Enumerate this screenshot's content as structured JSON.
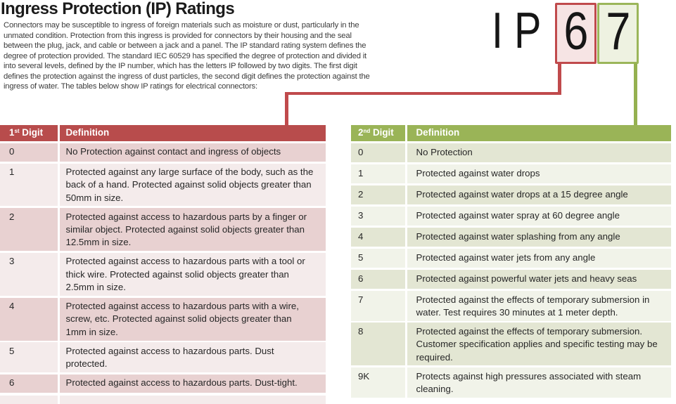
{
  "title": "Ingress Protection (IP) Ratings",
  "intro": "Connectors may be susceptible to ingress of foreign materials such as moisture or dust, particularly in the\nunmated condition. Protection from this ingress is provided for connectors by their housing and the seal\nbetween the plug, jack, and cable or between a jack and a panel. The IP standard rating system defines the\ndegree of protection provided. The standard IEC 60529 has specified the degree of protection and divided it\ninto several levels, defined by the IP number, which has the letters IP followed by two digits. The first digit\ndefines the protection against the ingress of dust particles, the second digit defines the protection against the\ningress of water. The tables below show IP ratings for electrical connectors:",
  "graphic": {
    "prefix": "I P",
    "first_digit": "6",
    "second_digit": "7"
  },
  "colors": {
    "red-header": "#b84c4c",
    "red-row-dark": "#e8d1d1",
    "red-row-light": "#f4ebeb",
    "red-line": "#c04a4c",
    "red-box-fill": "#f6e4e4",
    "green-header": "#9ab457",
    "green-row-dark": "#e3e6d3",
    "green-row-light": "#f1f3e9",
    "green-border": "#9bb65a",
    "green-line": "#95b150",
    "green-box-fill": "#eef2e1"
  },
  "tables": {
    "first_digit": {
      "header": {
        "digit_num": "1",
        "digit_sup": "st",
        "digit_word": " Digit",
        "definition": "Definition"
      },
      "rows": [
        {
          "digit": "0",
          "definition": "No Protection against contact and ingress of objects"
        },
        {
          "digit": "1",
          "definition": "Protected against any large surface of the body, such as the\nback of a hand. Protected against solid objects greater than\n50mm in size."
        },
        {
          "digit": "2",
          "definition": "Protected against access to hazardous parts by a finger or\nsimilar object. Protected against solid objects greater than\n12.5mm in size."
        },
        {
          "digit": "3",
          "definition": "Protected against access to hazardous parts with a tool or\nthick wire. Protected against solid objects greater than\n2.5mm in size."
        },
        {
          "digit": "4",
          "definition": "Protected against access to hazardous parts with a wire,\nscrew, etc. Protected against solid objects greater than\n1mm in size."
        },
        {
          "digit": "5",
          "definition": "Protected against access to hazardous parts. Dust\nprotected."
        },
        {
          "digit": "6",
          "definition": "Protected against access to hazardous parts. Dust-tight."
        }
      ]
    },
    "second_digit": {
      "header": {
        "digit_num": "2",
        "digit_sup": "nd",
        "digit_word": " Digit",
        "definition": "Definition"
      },
      "rows": [
        {
          "digit": "0",
          "definition": "No Protection"
        },
        {
          "digit": "1",
          "definition": "Protected against water drops"
        },
        {
          "digit": "2",
          "definition": "Protected against water drops at a 15 degree angle"
        },
        {
          "digit": "3",
          "definition": "Protected against water spray at 60 degree angle"
        },
        {
          "digit": "4",
          "definition": "Protected against water splashing from any angle"
        },
        {
          "digit": "5",
          "definition": "Protected against water jets from any angle"
        },
        {
          "digit": "6",
          "definition": "Protected against powerful water jets and heavy seas"
        },
        {
          "digit": "7",
          "definition": "Protected against the effects of temporary submersion in\nwater. Test requires 30 minutes at 1 meter depth."
        },
        {
          "digit": "8",
          "definition": "Protected against the effects of temporary submersion.\nCustomer specification applies and specific testing may be\nrequired."
        },
        {
          "digit": "9K",
          "definition": "Protects against high pressures associated with steam\ncleaning."
        }
      ]
    }
  }
}
